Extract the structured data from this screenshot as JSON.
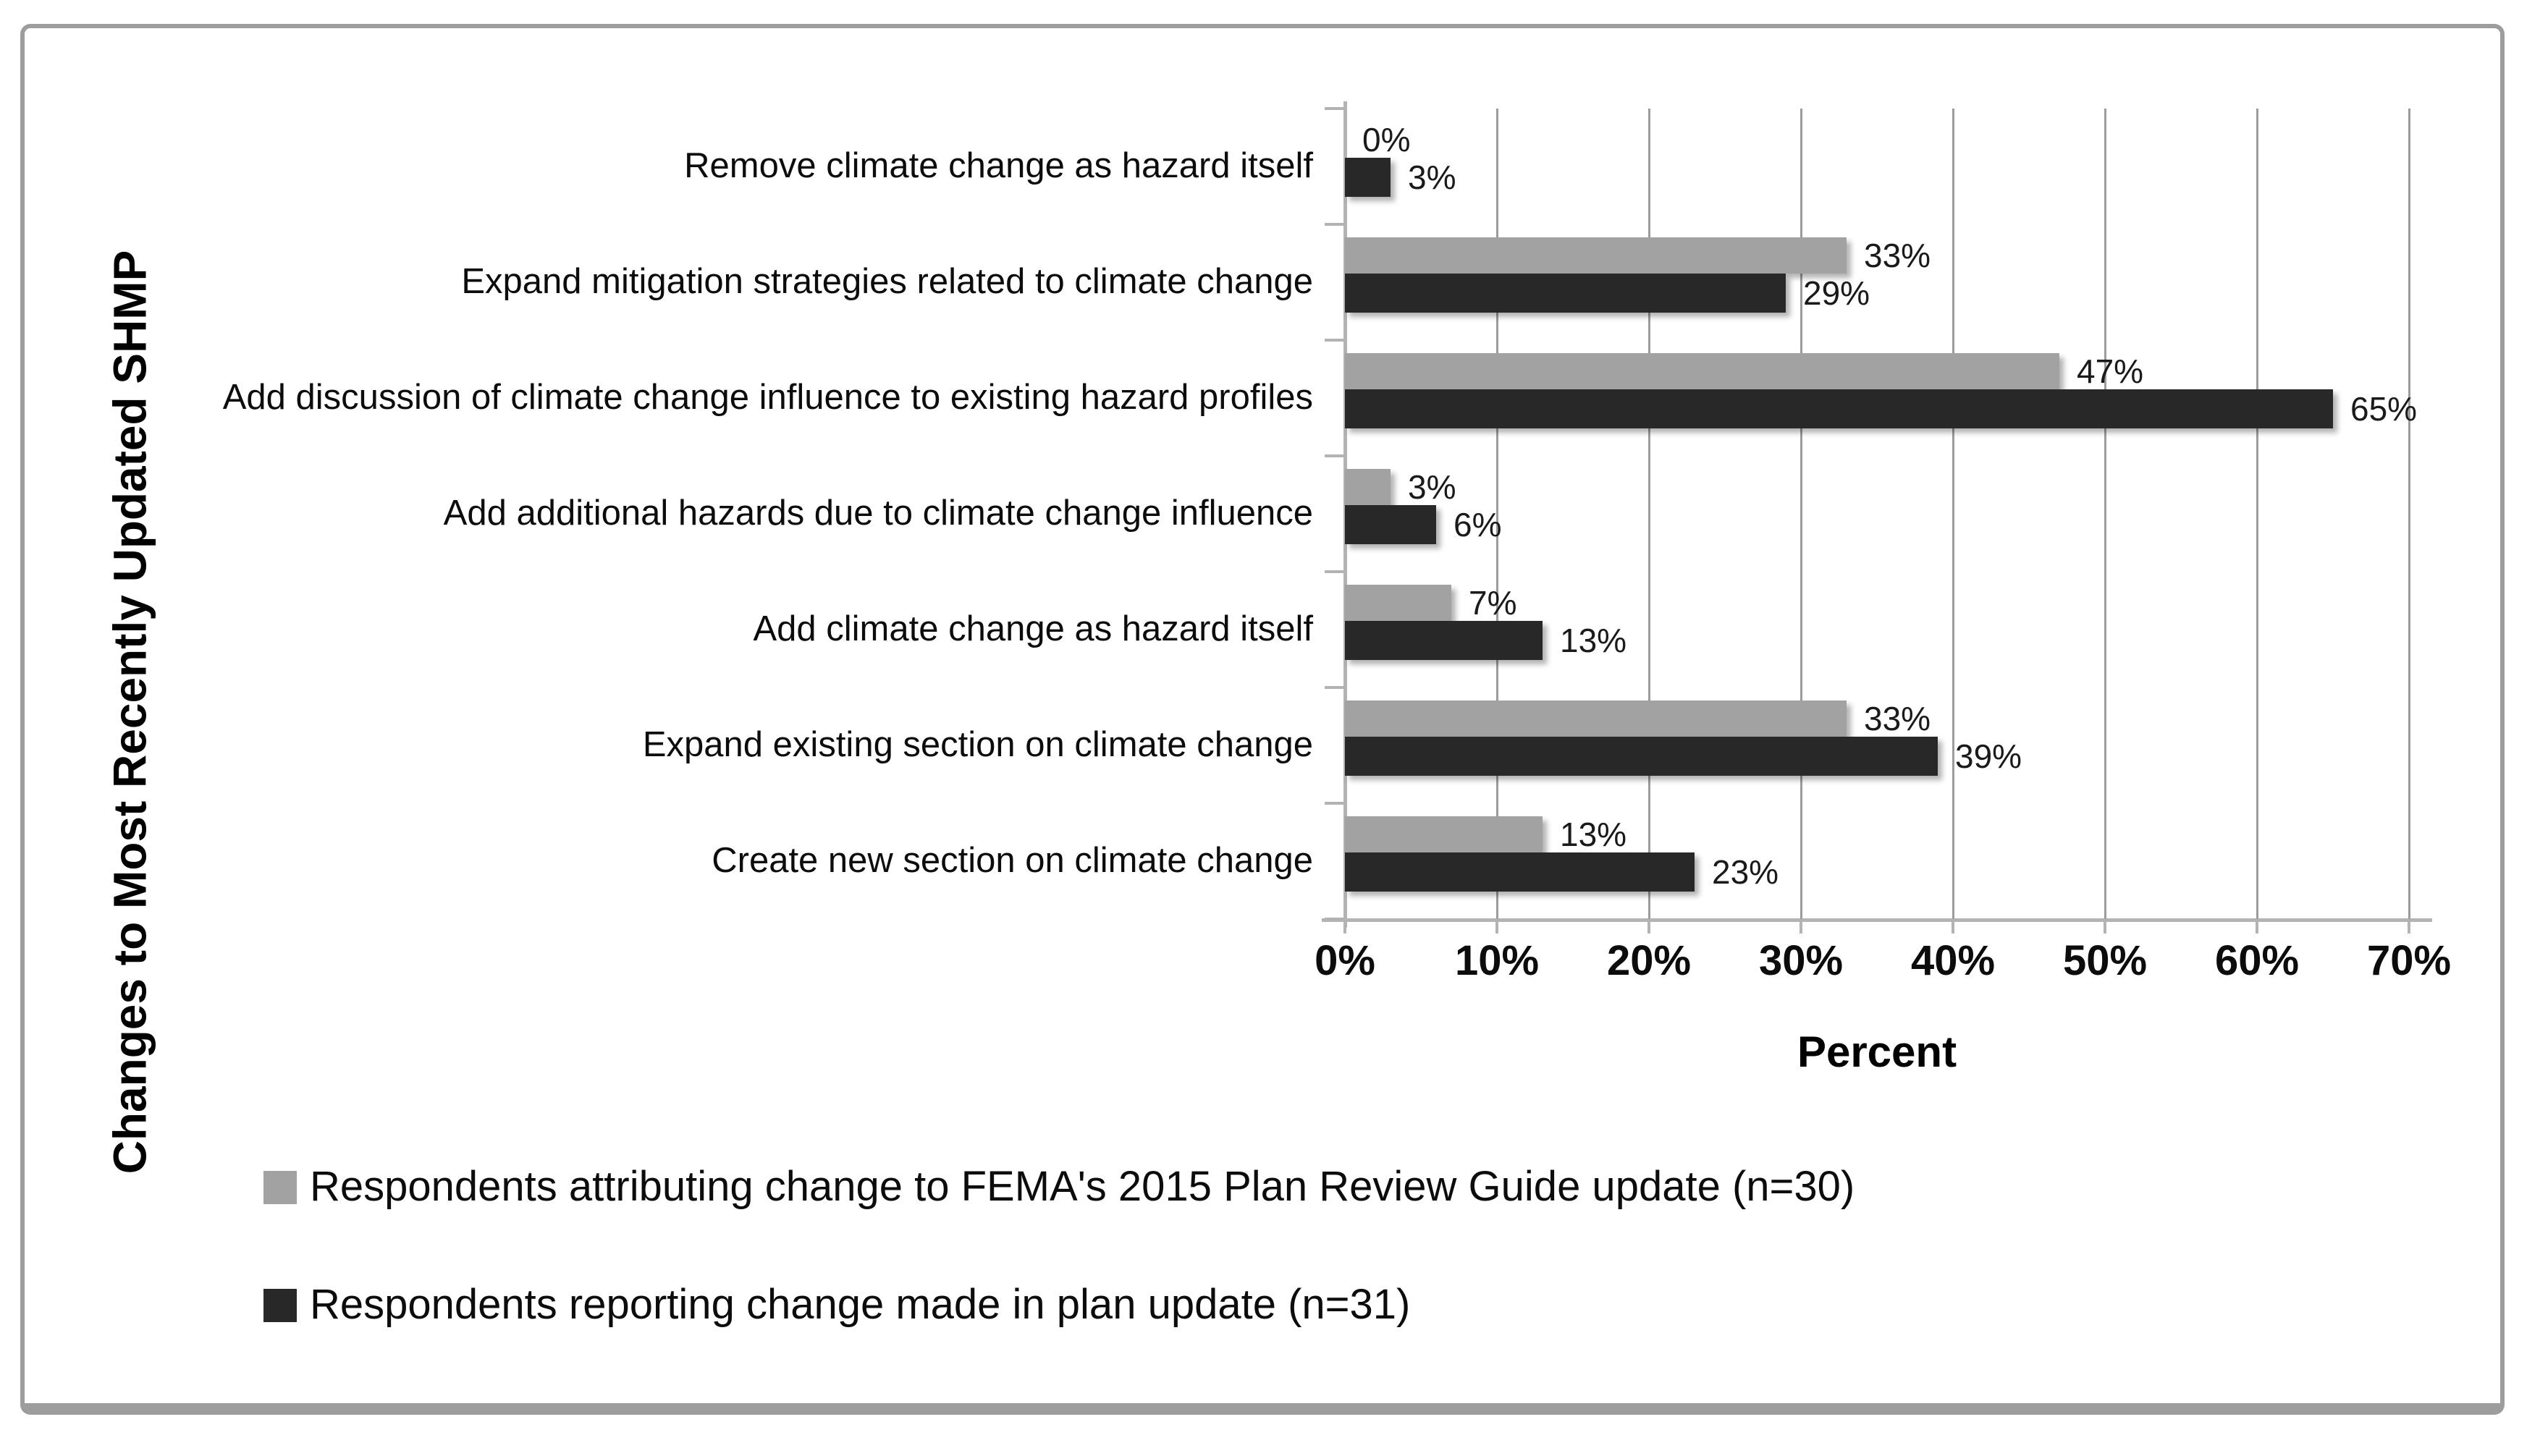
{
  "figure": {
    "y_axis_title": "Changes to Most Recently Updated SHMP",
    "x_axis_title": "Percent"
  },
  "chart_data": {
    "type": "bar",
    "orientation": "horizontal-grouped",
    "title": "",
    "xlabel": "Percent",
    "ylabel": "Changes to Most Recently Updated SHMP",
    "xlim": [
      0,
      70
    ],
    "x_ticks": [
      "0%",
      "10%",
      "20%",
      "30%",
      "40%",
      "50%",
      "60%",
      "70%"
    ],
    "grid": true,
    "legend_position": "bottom-left",
    "categories": [
      "Remove climate change as hazard itself",
      "Expand mitigation strategies related to climate change",
      "Add discussion of climate change influence to existing hazard profiles",
      "Add additional hazards due to climate change influence",
      "Add climate change as hazard itself",
      "Expand existing section on climate change",
      "Create new section on climate change"
    ],
    "series": [
      {
        "name": "Respondents attributing change to FEMA's 2015 Plan Review Guide update (n=30)",
        "color": "#a2a2a2",
        "values": [
          0,
          33,
          47,
          3,
          7,
          33,
          13
        ]
      },
      {
        "name": "Respondents reporting change made in plan update (n=31)",
        "color": "#282828",
        "values": [
          3,
          29,
          65,
          6,
          13,
          39,
          23
        ]
      }
    ],
    "value_label_suffix": "%"
  },
  "colors": {
    "background": "#ffffff",
    "border": "#9d9d9d",
    "gridline": "#9c9c9c",
    "axis": "#b3b3b3",
    "bar_gray": "#a2a2a2",
    "bar_dark": "#282828",
    "text": "#111111"
  }
}
